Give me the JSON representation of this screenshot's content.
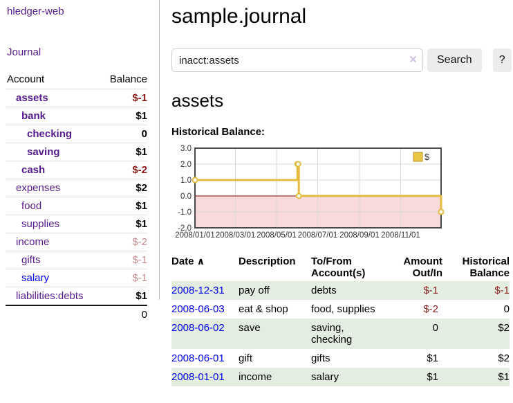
{
  "app": {
    "brand": "hledger-web",
    "nav_journal": "Journal"
  },
  "sidebar": {
    "accounts_header": {
      "account": "Account",
      "balance": "Balance"
    },
    "accounts": [
      {
        "name": "assets",
        "indent": 1,
        "bold": true,
        "balance": "$-1",
        "negative": true
      },
      {
        "name": "bank",
        "indent": 2,
        "bold": true,
        "balance": "$1"
      },
      {
        "name": "checking",
        "indent": 3,
        "bold": true,
        "balance": "0"
      },
      {
        "name": "saving",
        "indent": 3,
        "bold": true,
        "balance": "$1"
      },
      {
        "name": "cash",
        "indent": 2,
        "bold": true,
        "balance": "$-2",
        "negative": true
      },
      {
        "name": "expenses",
        "indent": 1,
        "bold": false,
        "balance": "$2"
      },
      {
        "name": "food",
        "indent": 2,
        "bold": false,
        "balance": "$1"
      },
      {
        "name": "supplies",
        "indent": 2,
        "bold": false,
        "balance": "$1"
      },
      {
        "name": "income",
        "indent": 1,
        "bold": false,
        "balance": "$-2",
        "negative": true,
        "faded": true
      },
      {
        "name": "gifts",
        "indent": 2,
        "bold": false,
        "balance": "$-1",
        "negative": true,
        "faded": true
      },
      {
        "name": "salary",
        "indent": 2,
        "bold": false,
        "balance": "$-1",
        "negative": true,
        "faded": true,
        "unvisited": true
      },
      {
        "name": "liabilities:debts",
        "indent": 1,
        "bold": false,
        "balance": "$1"
      }
    ],
    "total": "0"
  },
  "header": {
    "title": "sample.journal"
  },
  "search": {
    "value": "inacct:assets",
    "clear_icon": "×",
    "button_label": "Search",
    "help_label": "?"
  },
  "account_page": {
    "title": "assets",
    "chart_label": "Historical Balance:"
  },
  "chart_data": {
    "type": "line",
    "step": true,
    "title": "Historical Balance",
    "series": [
      {
        "name": "$",
        "points": [
          [
            "2008-01-01",
            1
          ],
          [
            "2008-06-01",
            2
          ],
          [
            "2008-06-02",
            2
          ],
          [
            "2008-06-03",
            0
          ],
          [
            "2008-12-31",
            -1
          ]
        ],
        "color": "#e3bc3f"
      }
    ],
    "x_range": [
      "2008-01-01",
      "2008-12-31"
    ],
    "x_ticks": [
      "2008/01/01",
      "2008/03/01",
      "2008/05/01",
      "2008/07/01",
      "2008/09/01",
      "2008/11/01"
    ],
    "y_ticks": [
      3.0,
      2.0,
      1.0,
      0.0,
      -1.0,
      -2.0
    ],
    "ylim": [
      -2,
      3
    ],
    "grid": true,
    "legend": {
      "label": "$",
      "position": "top-right",
      "swatch_fill": "#eac646",
      "swatch_border": "#b8922a"
    },
    "colors": {
      "negative_region": "#f9dada",
      "zero_line": "#8b0000",
      "grid_line": "#d8d8d8",
      "plot_border": "#4a4a4a",
      "tick_text": "#333333",
      "marker_fill": "#ffffff"
    }
  },
  "register": {
    "columns": [
      "Date",
      "Description",
      "To/From Account(s)",
      "Amount Out/In",
      "Historical Balance"
    ],
    "sort_icon": "∧",
    "rows": [
      {
        "date": "2008-12-31",
        "description": "pay off",
        "accounts": "debts",
        "amount": "$-1",
        "amount_negative": true,
        "balance": "$-1",
        "balance_negative": true,
        "shaded": true
      },
      {
        "date": "2008-06-03",
        "description": "eat & shop",
        "accounts": "food, supplies",
        "amount": "$-2",
        "amount_negative": true,
        "balance": "0",
        "balance_negative": false,
        "shaded": false
      },
      {
        "date": "2008-06-02",
        "description": "save",
        "accounts": "saving, checking",
        "amount": "0",
        "amount_negative": false,
        "balance": "$2",
        "balance_negative": false,
        "shaded": true
      },
      {
        "date": "2008-06-01",
        "description": "gift",
        "accounts": "gifts",
        "amount": "$1",
        "amount_negative": false,
        "balance": "$2",
        "balance_negative": false,
        "shaded": false
      },
      {
        "date": "2008-01-01",
        "description": "income",
        "accounts": "salary",
        "amount": "$1",
        "amount_negative": false,
        "balance": "$1",
        "balance_negative": false,
        "shaded": true
      }
    ]
  }
}
